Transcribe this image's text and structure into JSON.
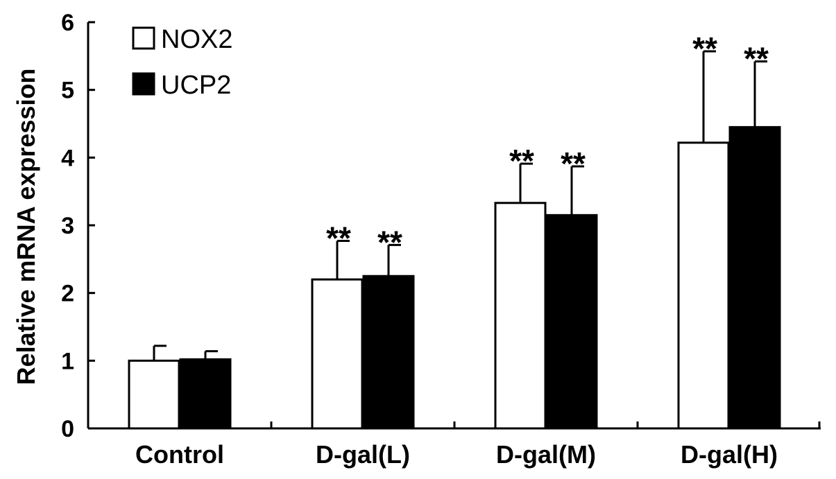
{
  "chart_data": {
    "type": "bar",
    "title": "",
    "xlabel": "",
    "ylabel": "Relative mRNA expression",
    "ylim": [
      0,
      6
    ],
    "yticks": [
      "0",
      "1",
      "2",
      "3",
      "4",
      "5",
      "6"
    ],
    "categories": [
      "Control",
      "D-gal(L)",
      "D-gal(M)",
      "D-gal(H)"
    ],
    "legend_position": "top-left",
    "grid": false,
    "series": [
      {
        "name": "NOX2",
        "fill": "#ffffff",
        "values": [
          1.0,
          2.2,
          3.33,
          4.22
        ],
        "errors": [
          0.22,
          0.57,
          0.58,
          1.35
        ],
        "annotations": [
          "",
          "**",
          "**",
          "**"
        ]
      },
      {
        "name": "UCP2",
        "fill": "#000000",
        "values": [
          1.02,
          2.25,
          3.15,
          4.45
        ],
        "errors": [
          0.12,
          0.46,
          0.72,
          0.97
        ],
        "annotations": [
          "",
          "**",
          "**",
          "**"
        ]
      }
    ]
  }
}
